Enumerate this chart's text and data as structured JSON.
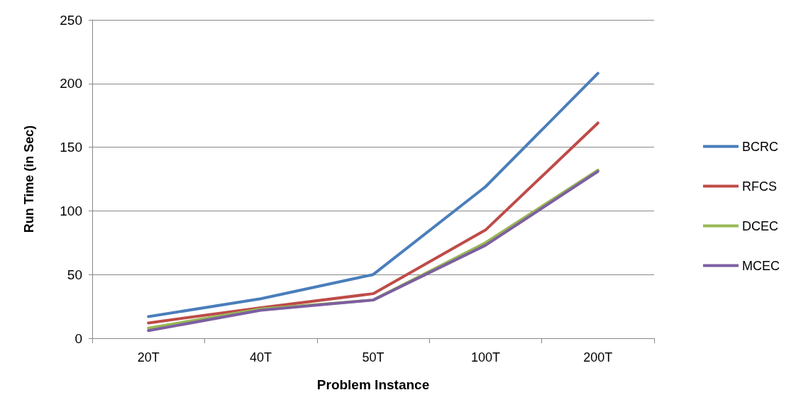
{
  "chart_data": {
    "type": "line",
    "xlabel": "Problem Instance",
    "ylabel": "Run Time (in Sec)",
    "categories": [
      "20T",
      "40T",
      "50T",
      "100T",
      "200T"
    ],
    "series": [
      {
        "name": "BCRC",
        "color": "#4a7ebb",
        "values": [
          17,
          31,
          50,
          119,
          208
        ]
      },
      {
        "name": "RFCS",
        "color": "#be4b48",
        "values": [
          12,
          24,
          35,
          85,
          169
        ]
      },
      {
        "name": "DCEC",
        "color": "#98b954",
        "values": [
          8,
          23,
          30,
          75,
          132
        ]
      },
      {
        "name": "MCEC",
        "color": "#7d5fa0",
        "values": [
          6,
          22,
          30,
          73,
          131
        ]
      }
    ],
    "ylim": [
      0,
      250
    ],
    "yticks": [
      0,
      50,
      100,
      150,
      200,
      250
    ],
    "grid": "y",
    "legend": "right",
    "marker": "none",
    "line_style": "solid"
  }
}
